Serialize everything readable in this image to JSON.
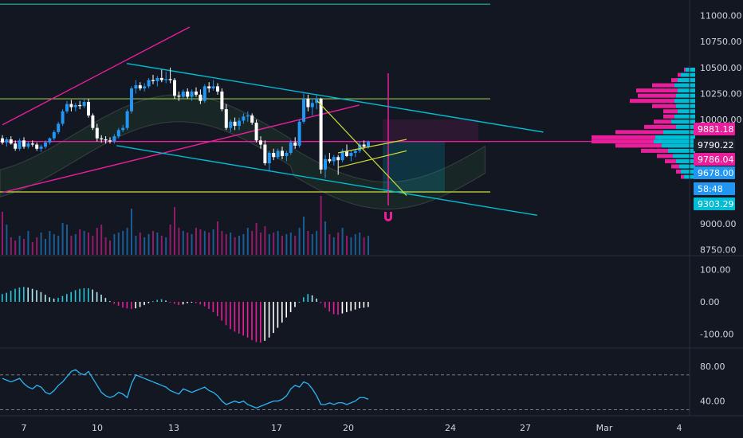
{
  "chart_data": [
    {
      "type": "candlestick",
      "title": "",
      "ylim": [
        8700,
        11150
      ],
      "y_ticks": [
        "11000.00",
        "10750.00",
        "10500.00",
        "10250.00",
        "10000.00",
        "9000.00",
        "8750.00"
      ],
      "x_ticks": [
        "7",
        "10",
        "13",
        "17",
        "20",
        "24",
        "27",
        "Mar",
        "4"
      ],
      "price_tags": [
        {
          "label": "9881.18",
          "value": 9881.18,
          "color": "#e91e9a"
        },
        {
          "label": "9790.22",
          "value": 9790.22,
          "color": "#1e222d"
        },
        {
          "label": "9786.04",
          "value": 9786.04,
          "color": "#e91e9a"
        },
        {
          "label": "9678.00",
          "value": 9678.0,
          "color": "#2196f3"
        },
        {
          "label": "58:48",
          "value": 9595,
          "color": "#2196f3"
        },
        {
          "label": "9303.29",
          "value": 9303.29,
          "color": "#00bcd4"
        }
      ],
      "horizontal_levels": [
        {
          "value": 11110,
          "color": "#26a69a"
        },
        {
          "value": 10200,
          "color": "#8bc34a"
        },
        {
          "value": 9790,
          "color": "#e91e9a"
        },
        {
          "value": 9305,
          "color": "#cddc39"
        }
      ],
      "trendlines": [
        {
          "from": [
            0,
            9950
          ],
          "to": [
            18.2,
            10890
          ],
          "color": "#e91e9a"
        },
        {
          "from": [
            0,
            9300
          ],
          "to": [
            34.7,
            10140
          ],
          "color": "#e91e9a"
        },
        {
          "from": [
            12.1,
            10540
          ],
          "to": [
            52.6,
            9880
          ],
          "color": "#00bcd4"
        },
        {
          "from": [
            11.1,
            9750
          ],
          "to": [
            52,
            9080
          ],
          "color": "#00bcd4"
        }
      ],
      "candles": [
        [
          9820,
          9850,
          9760,
          9780
        ],
        [
          9780,
          9830,
          9740,
          9810
        ],
        [
          9810,
          9840,
          9760,
          9770
        ],
        [
          9770,
          9800,
          9700,
          9720
        ],
        [
          9720,
          9820,
          9700,
          9800
        ],
        [
          9800,
          9830,
          9720,
          9740
        ],
        [
          9740,
          9790,
          9720,
          9770
        ],
        [
          9770,
          9800,
          9740,
          9760
        ],
        [
          9760,
          9780,
          9700,
          9720
        ],
        [
          9720,
          9760,
          9690,
          9740
        ],
        [
          9740,
          9800,
          9720,
          9780
        ],
        [
          9780,
          9830,
          9760,
          9820
        ],
        [
          9820,
          9900,
          9800,
          9880
        ],
        [
          9880,
          9980,
          9860,
          9960
        ],
        [
          9960,
          10100,
          9940,
          10080
        ],
        [
          10080,
          10180,
          10060,
          10150
        ],
        [
          10150,
          10190,
          10080,
          10120
        ],
        [
          10120,
          10160,
          10080,
          10140
        ],
        [
          10140,
          10180,
          10100,
          10130
        ],
        [
          10130,
          10200,
          10110,
          10170
        ],
        [
          10170,
          10200,
          10020,
          10040
        ],
        [
          10040,
          10060,
          9900,
          9920
        ],
        [
          9920,
          9960,
          9790,
          9820
        ],
        [
          9820,
          9850,
          9780,
          9810
        ],
        [
          9810,
          9840,
          9770,
          9800
        ],
        [
          9800,
          9830,
          9770,
          9790
        ],
        [
          9790,
          9860,
          9770,
          9840
        ],
        [
          9840,
          9920,
          9820,
          9900
        ],
        [
          9900,
          9950,
          9880,
          9920
        ],
        [
          9920,
          10100,
          9900,
          10080
        ],
        [
          10080,
          10320,
          10060,
          10300
        ],
        [
          10300,
          10380,
          10250,
          10330
        ],
        [
          10330,
          10360,
          10280,
          10300
        ],
        [
          10300,
          10350,
          10270,
          10320
        ],
        [
          10320,
          10400,
          10300,
          10380
        ],
        [
          10380,
          10430,
          10340,
          10370
        ],
        [
          10370,
          10420,
          10320,
          10400
        ],
        [
          10400,
          10480,
          10360,
          10380
        ],
        [
          10380,
          10460,
          10350,
          10390
        ],
        [
          10390,
          10500,
          10350,
          10380
        ],
        [
          10380,
          10400,
          10200,
          10230
        ],
        [
          10230,
          10270,
          10180,
          10220
        ],
        [
          10220,
          10290,
          10200,
          10270
        ],
        [
          10270,
          10300,
          10200,
          10220
        ],
        [
          10220,
          10290,
          10180,
          10270
        ],
        [
          10270,
          10310,
          10220,
          10240
        ],
        [
          10240,
          10290,
          10150,
          10180
        ],
        [
          10180,
          10340,
          10160,
          10320
        ],
        [
          10320,
          10360,
          10260,
          10300
        ],
        [
          10300,
          10380,
          10280,
          10320
        ],
        [
          10320,
          10350,
          10240,
          10270
        ],
        [
          10270,
          10300,
          10080,
          10100
        ],
        [
          10100,
          10150,
          9900,
          9920
        ],
        [
          9920,
          10000,
          9880,
          9980
        ],
        [
          9980,
          10020,
          9900,
          9940
        ],
        [
          9940,
          10020,
          9900,
          9990
        ],
        [
          9990,
          10060,
          9960,
          10030
        ],
        [
          10030,
          10080,
          9980,
          10040
        ],
        [
          10040,
          10060,
          9950,
          9970
        ],
        [
          9970,
          10000,
          9780,
          9800
        ],
        [
          9800,
          9840,
          9720,
          9760
        ],
        [
          9760,
          9800,
          9560,
          9580
        ],
        [
          9580,
          9700,
          9500,
          9680
        ],
        [
          9680,
          9720,
          9610,
          9640
        ],
        [
          9640,
          9720,
          9620,
          9700
        ],
        [
          9700,
          9740,
          9620,
          9650
        ],
        [
          9650,
          9700,
          9600,
          9680
        ],
        [
          9680,
          9800,
          9660,
          9780
        ],
        [
          9780,
          9830,
          9720,
          9750
        ],
        [
          9750,
          10000,
          9730,
          9980
        ],
        [
          9980,
          10250,
          9960,
          10200
        ],
        [
          10200,
          10240,
          10080,
          10120
        ],
        [
          10120,
          10200,
          10040,
          10160
        ],
        [
          10160,
          10240,
          10100,
          10200
        ],
        [
          10200,
          10210,
          9480,
          9520
        ],
        [
          9520,
          9660,
          9440,
          9620
        ],
        [
          9620,
          9680,
          9580,
          9600
        ],
        [
          9600,
          9660,
          9560,
          9640
        ],
        [
          9640,
          9660,
          9470,
          9610
        ],
        [
          9610,
          9720,
          9590,
          9700
        ],
        [
          9700,
          9760,
          9640,
          9650
        ],
        [
          9650,
          9700,
          9600,
          9680
        ],
        [
          9680,
          9720,
          9640,
          9700
        ],
        [
          9700,
          9790,
          9680,
          9760
        ],
        [
          9760,
          9800,
          9720,
          9740
        ],
        [
          9740,
          9800,
          9720,
          9786
        ]
      ],
      "volume_profile": [
        [
          10480,
          12,
          2
        ],
        [
          10430,
          18,
          4
        ],
        [
          10380,
          22,
          8
        ],
        [
          10330,
          26,
          28
        ],
        [
          10280,
          22,
          52
        ],
        [
          10230,
          24,
          48
        ],
        [
          10180,
          26,
          56
        ],
        [
          10130,
          24,
          30
        ],
        [
          10080,
          22,
          18
        ],
        [
          10030,
          26,
          14
        ],
        [
          9980,
          30,
          22
        ],
        [
          9930,
          24,
          40
        ],
        [
          9880,
          40,
          60
        ],
        [
          9830,
          50,
          80
        ],
        [
          9790,
          52,
          78
        ],
        [
          9750,
          42,
          58
        ],
        [
          9700,
          34,
          34
        ],
        [
          9650,
          28,
          20
        ],
        [
          9600,
          24,
          14
        ],
        [
          9550,
          20,
          10
        ],
        [
          9500,
          18,
          6
        ],
        [
          9450,
          14,
          4
        ]
      ],
      "volume": [
        54,
        38,
        22,
        18,
        24,
        20,
        30,
        16,
        22,
        28,
        20,
        30,
        26,
        24,
        40,
        38,
        24,
        26,
        32,
        30,
        28,
        24,
        34,
        38,
        22,
        18,
        26,
        28,
        30,
        34,
        58,
        24,
        28,
        22,
        26,
        30,
        28,
        24,
        22,
        38,
        60,
        34,
        30,
        28,
        26,
        34,
        32,
        30,
        28,
        32,
        42,
        30,
        26,
        28,
        22,
        24,
        26,
        34,
        30,
        40,
        28,
        36,
        26,
        28,
        30,
        24,
        26,
        28,
        24,
        34,
        48,
        30,
        26,
        30,
        74,
        42,
        26,
        22,
        28,
        34,
        24,
        22,
        26,
        28,
        22,
        24
      ]
    },
    {
      "type": "histogram",
      "title": "",
      "ylim": [
        -140,
        140
      ],
      "y_ticks": [
        "100.00",
        "0.00",
        "-100.00"
      ],
      "values": [
        24,
        28,
        34,
        40,
        44,
        46,
        44,
        40,
        36,
        30,
        22,
        14,
        10,
        12,
        18,
        24,
        30,
        36,
        40,
        42,
        42,
        38,
        30,
        22,
        12,
        2,
        -6,
        -12,
        -18,
        -20,
        -22,
        -20,
        -16,
        -10,
        -4,
        2,
        6,
        8,
        4,
        -2,
        -6,
        -10,
        -8,
        -4,
        -2,
        -4,
        -8,
        -14,
        -22,
        -32,
        -44,
        -58,
        -72,
        -84,
        -92,
        -98,
        -104,
        -110,
        -118,
        -124,
        -126,
        -120,
        -110,
        -96,
        -80,
        -64,
        -48,
        -32,
        -16,
        0,
        14,
        24,
        20,
        10,
        -4,
        -18,
        -30,
        -38,
        -40,
        -36,
        -32,
        -28,
        -24,
        -20,
        -18,
        -16
      ]
    },
    {
      "type": "line",
      "title": "",
      "ylim": [
        25,
        100
      ],
      "y_ticks": [
        "80.00",
        "40.00"
      ],
      "reference_lines": [
        70,
        30
      ],
      "values": [
        66,
        64,
        62,
        64,
        66,
        60,
        56,
        54,
        58,
        56,
        50,
        48,
        52,
        58,
        62,
        68,
        74,
        76,
        72,
        70,
        74,
        66,
        58,
        50,
        46,
        44,
        46,
        50,
        48,
        44,
        60,
        70,
        68,
        66,
        64,
        62,
        60,
        58,
        56,
        52,
        50,
        48,
        54,
        52,
        50,
        52,
        54,
        56,
        52,
        50,
        46,
        40,
        36,
        38,
        40,
        38,
        40,
        36,
        34,
        32,
        34,
        36,
        38,
        40,
        40,
        42,
        46,
        54,
        58,
        56,
        62,
        60,
        54,
        46,
        36,
        36,
        38,
        36,
        38,
        38,
        36,
        38,
        40,
        44,
        44,
        42
      ]
    }
  ],
  "xaxis_ticks": [
    "7",
    "10",
    "13",
    "17",
    "20",
    "24",
    "27",
    "Mar",
    "4"
  ],
  "colors": {
    "background": "#131722",
    "up": "#2196f3",
    "down": "#ffffff",
    "pink": "#e91e9a",
    "cyan": "#00bcd4",
    "lime": "#8bc34a",
    "yellow": "#cddc39",
    "teal": "#26a69a"
  },
  "icons": [
    "magnet-icon"
  ]
}
